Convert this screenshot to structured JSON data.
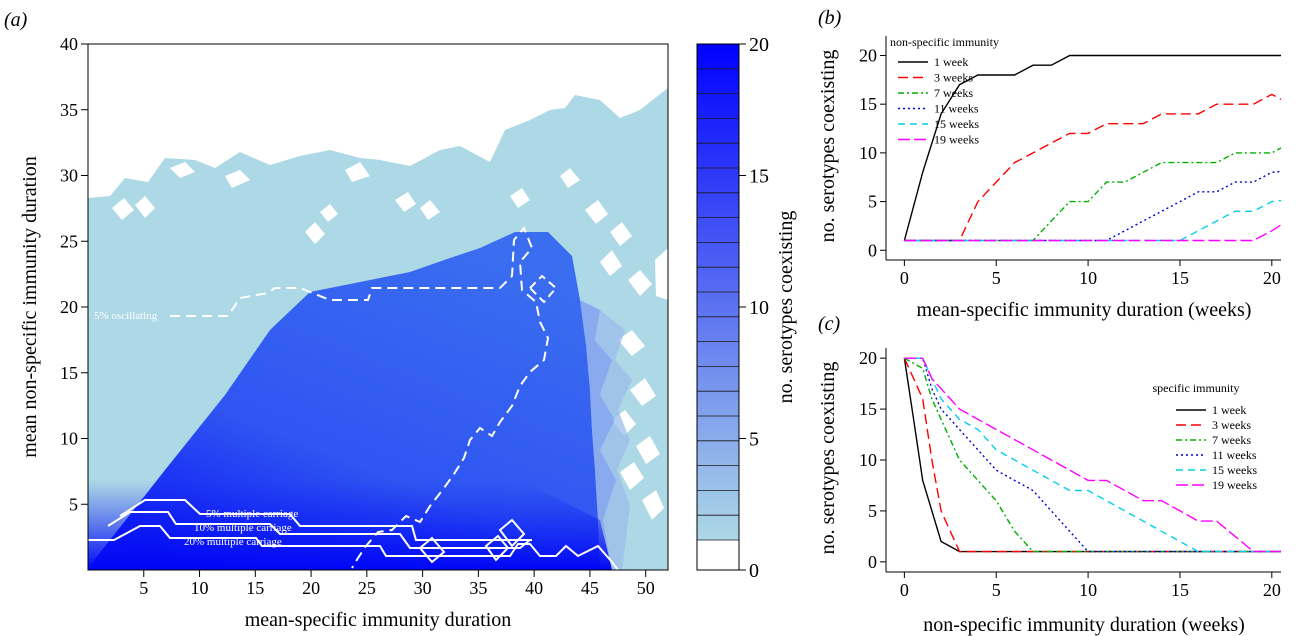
{
  "chart_data": [
    {
      "panel": "(a)",
      "type": "heatmap",
      "xlabel": "mean-specific immunity duration",
      "ylabel": "mean non-specific immunity duration",
      "x_ticks": [
        5,
        10,
        15,
        20,
        25,
        30,
        35,
        40,
        45,
        50
      ],
      "y_ticks": [
        5,
        10,
        15,
        20,
        25,
        30,
        35,
        40
      ],
      "xlim": [
        0,
        52
      ],
      "ylim": [
        0,
        40
      ],
      "colorbar": {
        "label": "no. serotypes coexisting",
        "ticks": [
          0,
          5,
          10,
          15,
          20
        ],
        "levels": 20,
        "low_color": "#add8e6",
        "high_color": "#0000ff",
        "zero_color": "#ffffff"
      },
      "contours": [
        {
          "label": "5% oscillating",
          "style": "dashed"
        },
        {
          "label": "5% multiple carriage",
          "style": "solid"
        },
        {
          "label": "10% multiple carriage",
          "style": "solid"
        },
        {
          "label": "20% multiple carriage",
          "style": "solid"
        }
      ]
    },
    {
      "panel": "(b)",
      "type": "line",
      "xlabel": "mean-specific immunity duration (weeks)",
      "ylabel": "no. serotypes coexisting",
      "xlim": [
        -1,
        20.5
      ],
      "ylim": [
        -1,
        22
      ],
      "x_ticks": [
        0,
        5,
        10,
        15,
        20
      ],
      "y_ticks": [
        0,
        5,
        10,
        15,
        20
      ],
      "legend_title": "non-specific immunity",
      "legend_position": "top-left",
      "x": [
        0,
        1,
        2,
        3,
        4,
        5,
        6,
        7,
        8,
        9,
        10,
        11,
        12,
        13,
        14,
        15,
        16,
        17,
        18,
        19,
        20,
        20.5
      ],
      "series": [
        {
          "name": "1 week",
          "color": "#000000",
          "dash": "solid",
          "values": [
            1,
            8,
            14,
            17,
            18,
            18,
            18,
            19,
            19,
            20,
            20,
            20,
            20,
            20,
            20,
            20,
            20,
            20,
            20,
            20,
            20,
            20
          ]
        },
        {
          "name": "3 weeks",
          "color": "#ff0000",
          "dash": "long",
          "values": [
            1,
            1,
            1,
            1,
            5,
            7,
            9,
            10,
            11,
            12,
            12,
            13,
            13,
            13,
            14,
            14,
            14,
            15,
            15,
            15,
            16,
            15.5
          ]
        },
        {
          "name": "7 weeks",
          "color": "#00b000",
          "dash": "dashdot",
          "values": [
            1,
            1,
            1,
            1,
            1,
            1,
            1,
            1,
            3,
            5,
            5,
            7,
            7,
            8,
            9,
            9,
            9,
            9,
            10,
            10,
            10,
            10.5
          ]
        },
        {
          "name": "11 weeks",
          "color": "#0000cc",
          "dash": "dot",
          "values": [
            1,
            1,
            1,
            1,
            1,
            1,
            1,
            1,
            1,
            1,
            1,
            1,
            2,
            3,
            4,
            5,
            6,
            6,
            7,
            7,
            8,
            8.1
          ]
        },
        {
          "name": "15 weeks",
          "color": "#00d0e8",
          "dash": "dash",
          "values": [
            1,
            1,
            1,
            1,
            1,
            1,
            1,
            1,
            1,
            1,
            1,
            1,
            1,
            1,
            1,
            1,
            2,
            3,
            4,
            4,
            5,
            5.1
          ]
        },
        {
          "name": "19 weeks",
          "color": "#ff00ff",
          "dash": "longdash",
          "values": [
            1,
            1,
            1,
            1,
            1,
            1,
            1,
            1,
            1,
            1,
            1,
            1,
            1,
            1,
            1,
            1,
            1,
            1,
            1,
            1,
            2,
            2.6
          ]
        }
      ]
    },
    {
      "panel": "(c)",
      "type": "line",
      "xlabel": "non-specific immunity duration (weeks)",
      "ylabel": "no. serotypes coexisting",
      "xlim": [
        -1,
        20.5
      ],
      "ylim": [
        -1,
        21
      ],
      "x_ticks": [
        0,
        5,
        10,
        15,
        20
      ],
      "y_ticks": [
        0,
        5,
        10,
        15,
        20
      ],
      "legend_title": "specific immunity",
      "legend_position": "right",
      "x": [
        0,
        0.5,
        1,
        1.5,
        2,
        2.5,
        3,
        4,
        5,
        6,
        7,
        8,
        9,
        10,
        11,
        12,
        13,
        14,
        15,
        16,
        17,
        18,
        19,
        20,
        20.5
      ],
      "series": [
        {
          "name": "1 week",
          "color": "#000000",
          "dash": "solid",
          "values": [
            20,
            14,
            8,
            5,
            2,
            1.5,
            1,
            1,
            1,
            1,
            1,
            1,
            1,
            1,
            1,
            1,
            1,
            1,
            1,
            1,
            1,
            1,
            1,
            1,
            1
          ]
        },
        {
          "name": "3 weeks",
          "color": "#ff0000",
          "dash": "long",
          "values": [
            20,
            18,
            16,
            10,
            5,
            3,
            1,
            1,
            1,
            1,
            1,
            1,
            1,
            1,
            1,
            1,
            1,
            1,
            1,
            1,
            1,
            1,
            1,
            1,
            1
          ]
        },
        {
          "name": "7 weeks",
          "color": "#00b000",
          "dash": "dashdot",
          "values": [
            20,
            19.5,
            19,
            16,
            14,
            12,
            10,
            8,
            6,
            3,
            1,
            1,
            1,
            1,
            1,
            1,
            1,
            1,
            1,
            1,
            1,
            1,
            1,
            1,
            1
          ]
        },
        {
          "name": "11 weeks",
          "color": "#0000cc",
          "dash": "dot",
          "values": [
            20,
            20,
            20,
            17,
            15,
            14,
            13,
            11,
            9,
            8,
            7,
            5,
            3,
            1,
            1,
            1,
            1,
            1,
            1,
            1,
            1,
            1,
            1,
            1,
            1
          ]
        },
        {
          "name": "15 weeks",
          "color": "#00d0e8",
          "dash": "dash",
          "values": [
            20,
            20,
            20,
            18,
            16,
            15,
            14,
            13,
            11,
            10,
            9,
            8,
            7,
            7,
            6,
            5,
            4,
            3,
            2,
            1,
            1,
            1,
            1,
            1,
            1
          ]
        },
        {
          "name": "19 weeks",
          "color": "#ff00ff",
          "dash": "longdash",
          "values": [
            20,
            20,
            20,
            18,
            17,
            16,
            15,
            14,
            13,
            12,
            11,
            10,
            9,
            8,
            8,
            7,
            6,
            6,
            5,
            4,
            4,
            2.5,
            1,
            1,
            1
          ]
        }
      ]
    }
  ]
}
